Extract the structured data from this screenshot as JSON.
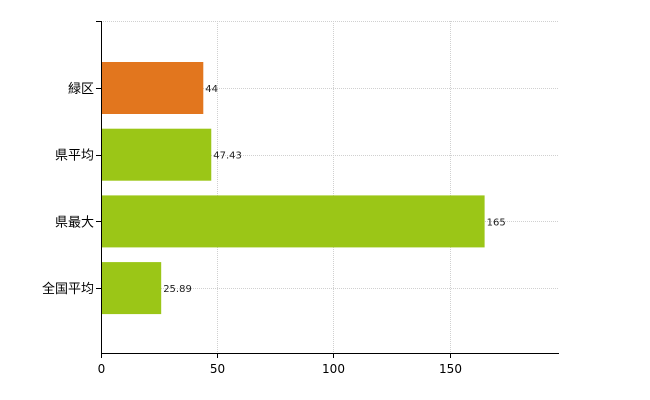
{
  "chart_data": {
    "type": "bar",
    "orientation": "horizontal",
    "categories": [
      "緑区",
      "県平均",
      "県最大",
      "全国平均"
    ],
    "values": [
      44,
      47.43,
      165,
      25.89
    ],
    "data_labels": [
      "44",
      "47.43",
      "165",
      "25.89"
    ],
    "bar_colors": [
      "#e2761e",
      "#9bc617",
      "#9bc617",
      "#9bc617"
    ],
    "xlim": [
      0,
      197
    ],
    "xticks": [
      0,
      50,
      100,
      150
    ],
    "xtick_labels": [
      "0",
      "50",
      "100",
      "150"
    ],
    "grid": true,
    "legend": "none"
  }
}
